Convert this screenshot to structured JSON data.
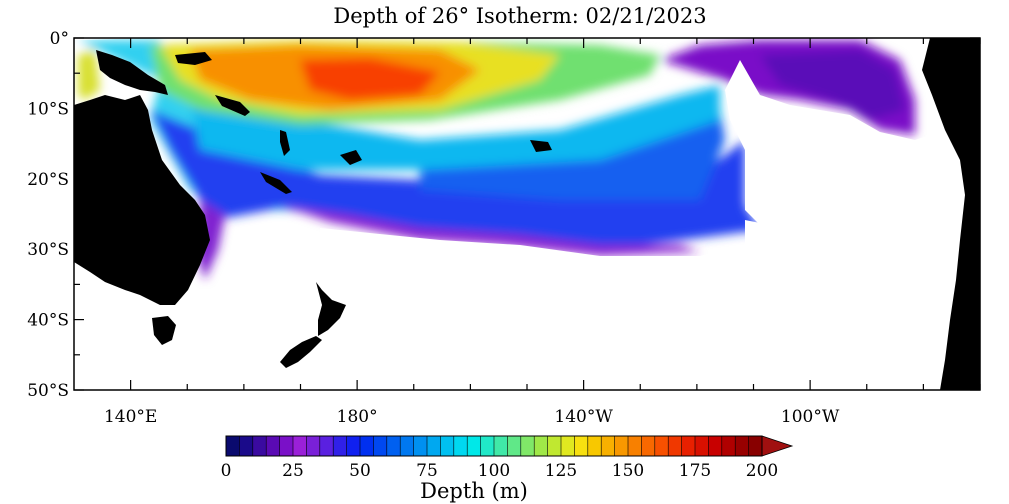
{
  "map": {
    "title": "Depth of 26° Isotherm: 02/21/2023",
    "date": "02/21/2023",
    "y_axis": {
      "ticks": [
        "0°",
        "10°S",
        "20°S",
        "30°S",
        "40°S",
        "50°S"
      ],
      "values": [
        0,
        -10,
        -20,
        -30,
        -40,
        -50
      ],
      "range": [
        -50,
        0
      ]
    },
    "x_axis": {
      "ticks": [
        "140°E",
        "180°",
        "140°W",
        "100°W"
      ],
      "values": [
        140,
        180,
        220,
        260
      ],
      "range": [
        130,
        290
      ]
    },
    "land_color": "#000000",
    "no_data_color": "#ffffff",
    "landmasses": [
      "australia",
      "new-guinea",
      "new-zealand",
      "south-america",
      "tasmania"
    ]
  },
  "colorbar": {
    "label": "Depth (m)",
    "ticks": [
      "0",
      "25",
      "50",
      "75",
      "100",
      "125",
      "150",
      "175",
      "200"
    ],
    "range": [
      0,
      200
    ],
    "step": 5,
    "extend": "max",
    "colors": [
      "#0a0a6e",
      "#1a0a8a",
      "#3a0aa0",
      "#5a0ab4",
      "#7a10c8",
      "#9a20d8",
      "#7a20d8",
      "#5a20e0",
      "#3020e8",
      "#1020f0",
      "#0030f0",
      "#0048f0",
      "#0060f0",
      "#0078f0",
      "#0090f0",
      "#00a8f0",
      "#00c0f0",
      "#00d8f0",
      "#00e8e8",
      "#20e8c8",
      "#40e8a8",
      "#60e888",
      "#80e868",
      "#a0e848",
      "#c0e830",
      "#e0e820",
      "#f8e010",
      "#f8c800",
      "#f8b000",
      "#f89800",
      "#f88000",
      "#f86800",
      "#f85000",
      "#f03800",
      "#e82000",
      "#d81000",
      "#c80000",
      "#b00000",
      "#980000",
      "#880000"
    ],
    "over_color": "#a01010"
  }
}
